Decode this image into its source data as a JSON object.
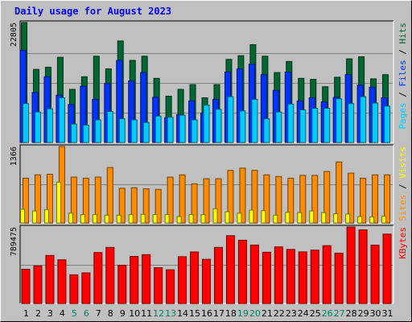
{
  "chart_data": [
    {
      "type": "bar",
      "title": "Daily usage for August 2023",
      "categories": [
        "1",
        "2",
        "3",
        "4",
        "5",
        "6",
        "7",
        "8",
        "9",
        "10",
        "11",
        "12",
        "13",
        "14",
        "15",
        "16",
        "17",
        "18",
        "19",
        "20",
        "21",
        "22",
        "23",
        "24",
        "25",
        "26",
        "27",
        "28",
        "29",
        "30",
        "31"
      ],
      "weekend_days": [
        "5",
        "6",
        "12",
        "13",
        "19",
        "20",
        "26",
        "27"
      ],
      "y_tick": "22805",
      "ymax": 22805,
      "series": [
        {
          "name": "Hits",
          "color": "#006633",
          "values": [
            22805,
            13900,
            14300,
            16200,
            10100,
            12500,
            16400,
            14000,
            19300,
            15600,
            16400,
            12200,
            8800,
            10100,
            11000,
            8500,
            11000,
            15800,
            16500,
            18600,
            16400,
            13300,
            15400,
            12200,
            12000,
            10600,
            12400,
            15900,
            16300,
            12100,
            12900
          ]
        },
        {
          "name": "Files",
          "color": "#0033FF",
          "values": [
            17500,
            9500,
            12500,
            9000,
            7200,
            10700,
            8200,
            11200,
            15600,
            11700,
            13300,
            8600,
            4700,
            5300,
            7900,
            5600,
            8200,
            13400,
            14000,
            14900,
            12900,
            9900,
            13400,
            7900,
            8500,
            7700,
            8600,
            12900,
            10900,
            10500,
            8500
          ]
        },
        {
          "name": "Pages",
          "color": "#00CCFF",
          "values": [
            7400,
            5800,
            6400,
            8500,
            3500,
            3300,
            4300,
            5900,
            4500,
            4300,
            3800,
            5000,
            4800,
            5200,
            4300,
            7100,
            6300,
            8700,
            6000,
            8200,
            4500,
            5800,
            7300,
            6200,
            6500,
            6500,
            8300,
            7400,
            8700,
            7500,
            6900
          ]
        }
      ],
      "right_label": {
        "pages": "Pages",
        "files": "Files",
        "hits": "Hits",
        "sep": " / "
      }
    },
    {
      "type": "bar",
      "y_tick": "1366",
      "ymax": 1366,
      "series": [
        {
          "name": "Visits",
          "color": "#FFFF00",
          "values": [
            245,
            215,
            240,
            730,
            175,
            150,
            150,
            140,
            140,
            150,
            155,
            150,
            150,
            115,
            150,
            150,
            255,
            200,
            175,
            230,
            220,
            140,
            190,
            185,
            215,
            185,
            165,
            160,
            115,
            110,
            120
          ]
        },
        {
          "name": "Sites",
          "color": "#FF8C00",
          "values": [
            800,
            860,
            870,
            1366,
            820,
            800,
            820,
            990,
            620,
            630,
            610,
            600,
            820,
            860,
            700,
            790,
            790,
            940,
            980,
            940,
            860,
            830,
            800,
            850,
            850,
            920,
            1090,
            890,
            800,
            860,
            860
          ]
        }
      ],
      "right_label": {
        "sites": "Sites",
        "visits": "Visits",
        "sep": " / "
      }
    },
    {
      "type": "bar",
      "y_tick": "789475",
      "ymax": 789475,
      "series": [
        {
          "name": "KBytes",
          "color": "#FF0000",
          "values": [
            353000,
            388000,
            496000,
            451000,
            296000,
            316000,
            526000,
            579000,
            395000,
            486000,
            504000,
            369000,
            348000,
            483000,
            532000,
            456000,
            579000,
            700000,
            653000,
            603000,
            529000,
            584000,
            558000,
            533000,
            551000,
            597000,
            519000,
            789475,
            760000,
            602000,
            716000
          ]
        }
      ],
      "right_label": {
        "kbytes": "KBytes"
      }
    }
  ]
}
